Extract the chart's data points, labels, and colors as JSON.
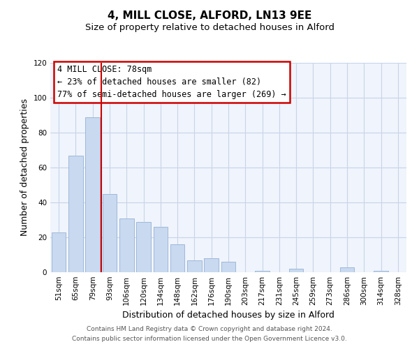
{
  "title": "4, MILL CLOSE, ALFORD, LN13 9EE",
  "subtitle": "Size of property relative to detached houses in Alford",
  "xlabel": "Distribution of detached houses by size in Alford",
  "ylabel": "Number of detached properties",
  "categories": [
    "51sqm",
    "65sqm",
    "79sqm",
    "93sqm",
    "106sqm",
    "120sqm",
    "134sqm",
    "148sqm",
    "162sqm",
    "176sqm",
    "190sqm",
    "203sqm",
    "217sqm",
    "231sqm",
    "245sqm",
    "259sqm",
    "273sqm",
    "286sqm",
    "300sqm",
    "314sqm",
    "328sqm"
  ],
  "values": [
    23,
    67,
    89,
    45,
    31,
    29,
    26,
    16,
    7,
    8,
    6,
    0,
    1,
    0,
    2,
    0,
    0,
    3,
    0,
    1,
    0
  ],
  "bar_color": "#c8d9f0",
  "bar_edge_color": "#a0b8d8",
  "marker_line_index": 2,
  "marker_label": "4 MILL CLOSE: 78sqm",
  "annotation_line1": "← 23% of detached houses are smaller (82)",
  "annotation_line2": "77% of semi-detached houses are larger (269) →",
  "annotation_box_color": "#ffffff",
  "annotation_box_edge": "#cc0000",
  "marker_line_color": "#cc0000",
  "ylim": [
    0,
    120
  ],
  "yticks": [
    0,
    20,
    40,
    60,
    80,
    100,
    120
  ],
  "footer_line1": "Contains HM Land Registry data © Crown copyright and database right 2024.",
  "footer_line2": "Contains public sector information licensed under the Open Government Licence v3.0.",
  "title_fontsize": 11,
  "subtitle_fontsize": 9.5,
  "axis_label_fontsize": 9,
  "tick_fontsize": 7.5,
  "footer_fontsize": 6.5,
  "annotation_fontsize": 8.5,
  "background_color": "#f5f5ff"
}
